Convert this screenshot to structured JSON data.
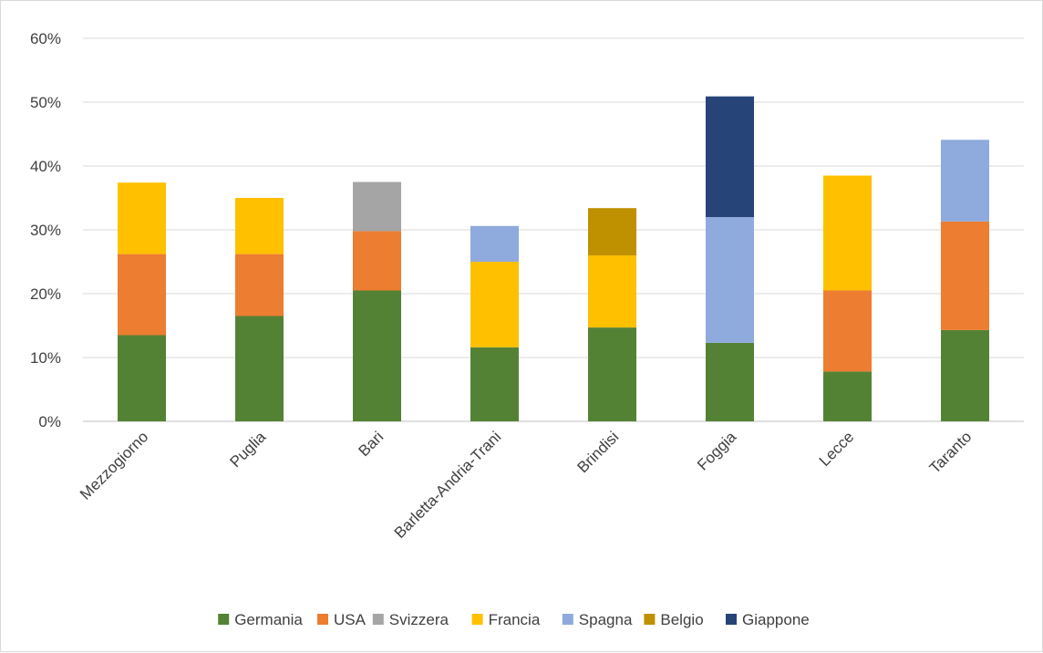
{
  "chart_data": {
    "type": "bar",
    "stacked": true,
    "categories": [
      "Mezzogiorno",
      "Puglia",
      "Bari",
      "Barletta-Andria-Trani",
      "Brindisi",
      "Foggia",
      "Lecce",
      "Taranto"
    ],
    "y_ticks": [
      "0%",
      "10%",
      "20%",
      "30%",
      "40%",
      "50%",
      "60%"
    ],
    "ylim": [
      0,
      60
    ],
    "grid": true,
    "legend_position": "bottom",
    "series": [
      {
        "name": "Germania",
        "color": "#548235",
        "values": [
          13.5,
          16.5,
          20.5,
          11.6,
          14.7,
          12.3,
          7.8,
          14.3
        ]
      },
      {
        "name": "USA",
        "color": "#ED7D31",
        "values": [
          12.7,
          9.7,
          9.3,
          0,
          0,
          0,
          12.7,
          17.0
        ]
      },
      {
        "name": "Svizzera",
        "color": "#A5A5A5",
        "values": [
          0,
          0,
          7.7,
          0,
          0,
          0,
          0,
          0
        ]
      },
      {
        "name": "Francia",
        "color": "#FFC000",
        "values": [
          11.2,
          8.8,
          0,
          13.4,
          11.3,
          0,
          18.0,
          0
        ]
      },
      {
        "name": "Spagna",
        "color": "#8FAADC",
        "values": [
          0,
          0,
          0,
          5.6,
          0,
          19.7,
          0,
          12.8
        ]
      },
      {
        "name": "Belgio",
        "color": "#BF9000",
        "values": [
          0,
          0,
          0,
          0,
          7.4,
          0,
          0,
          0
        ]
      },
      {
        "name": "Giappone",
        "color": "#264478",
        "values": [
          0,
          0,
          0,
          0,
          0,
          18.9,
          0,
          0
        ]
      }
    ]
  }
}
